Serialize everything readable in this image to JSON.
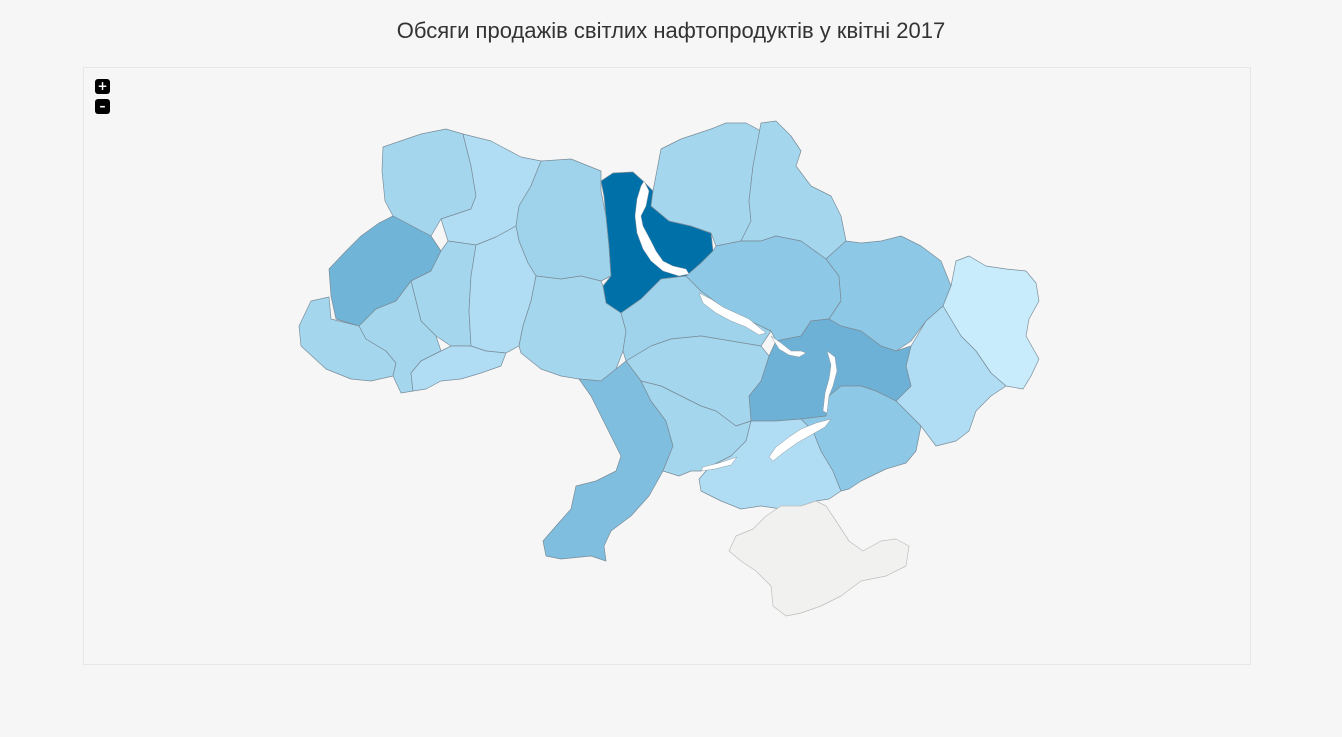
{
  "title": "Обсяги продажів світлих нафтопродуктів у квітні 2017",
  "zoom": {
    "in_label": "+",
    "out_label": "–"
  },
  "colors": {
    "background": "#f6f6f6",
    "scale": [
      "#c9ecfd",
      "#b0ddf4",
      "#a4d6ee",
      "#9fd3ec",
      "#8dc8e6",
      "#80bedf",
      "#75b6da",
      "#70b4d8",
      "#6eb1d6",
      "#0070a8"
    ],
    "no_data": "#f1f1ef",
    "water": "#ffffff"
  },
  "regions": [
    {
      "id": "volyn",
      "shade": 2
    },
    {
      "id": "rivne",
      "shade": 1
    },
    {
      "id": "zhytomyr",
      "shade": 3
    },
    {
      "id": "kyiv",
      "shade": 9
    },
    {
      "id": "chernihiv",
      "shade": 2
    },
    {
      "id": "sumy",
      "shade": 2
    },
    {
      "id": "lviv",
      "shade": 7
    },
    {
      "id": "ternopil",
      "shade": 2
    },
    {
      "id": "khmelnytskyi",
      "shade": 1
    },
    {
      "id": "zakarpattia",
      "shade": 2
    },
    {
      "id": "ivano-frankivsk",
      "shade": 2
    },
    {
      "id": "chernivtsi",
      "shade": 1
    },
    {
      "id": "vinnytsia",
      "shade": 2
    },
    {
      "id": "cherkasy",
      "shade": 3
    },
    {
      "id": "poltava",
      "shade": 4
    },
    {
      "id": "kharkiv",
      "shade": 4
    },
    {
      "id": "luhansk",
      "shade": 0
    },
    {
      "id": "donetsk",
      "shade": 1
    },
    {
      "id": "dnipropetrovsk",
      "shade": 8
    },
    {
      "id": "kirovohrad",
      "shade": 2
    },
    {
      "id": "odesa",
      "shade": 5
    },
    {
      "id": "mykolaiv",
      "shade": 2
    },
    {
      "id": "kherson",
      "shade": 1
    },
    {
      "id": "zaporizhzhia",
      "shade": 4
    },
    {
      "id": "crimea",
      "shade": null
    }
  ]
}
